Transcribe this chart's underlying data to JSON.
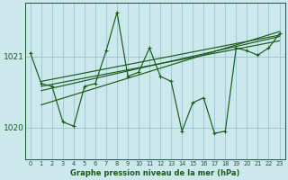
{
  "background_color": "#cce8ec",
  "grid_color": "#99ccd4",
  "line_color": "#1a5c1a",
  "title": "Graphe pression niveau de la mer (hPa)",
  "yticks": [
    1020,
    1021
  ],
  "ylim": [
    1019.55,
    1021.75
  ],
  "xlim": [
    -0.5,
    23.5
  ],
  "main_series": [
    1021.05,
    1020.62,
    1020.58,
    1020.08,
    1020.02,
    1020.58,
    1020.62,
    1021.08,
    1021.62,
    1020.72,
    1020.78,
    1021.12,
    1020.72,
    1020.65,
    1019.95,
    1020.35,
    1020.42,
    1019.92,
    1019.95,
    1021.12,
    1021.08,
    1021.02,
    1021.12,
    1021.32
  ],
  "trend_lines": [
    [
      [
        1,
        23
      ],
      [
        1020.32,
        1021.35
      ]
    ],
    [
      [
        1,
        23
      ],
      [
        1020.52,
        1021.28
      ]
    ],
    [
      [
        1,
        23
      ],
      [
        1020.58,
        1021.22
      ]
    ],
    [
      [
        1,
        23
      ],
      [
        1020.65,
        1021.3
      ]
    ]
  ],
  "xlabel_ticks": [
    "0",
    "1",
    "2",
    "3",
    "4",
    "5",
    "6",
    "7",
    "8",
    "9",
    "10",
    "11",
    "12",
    "13",
    "14",
    "15",
    "16",
    "17",
    "18",
    "19",
    "20",
    "21",
    "22",
    "23"
  ]
}
